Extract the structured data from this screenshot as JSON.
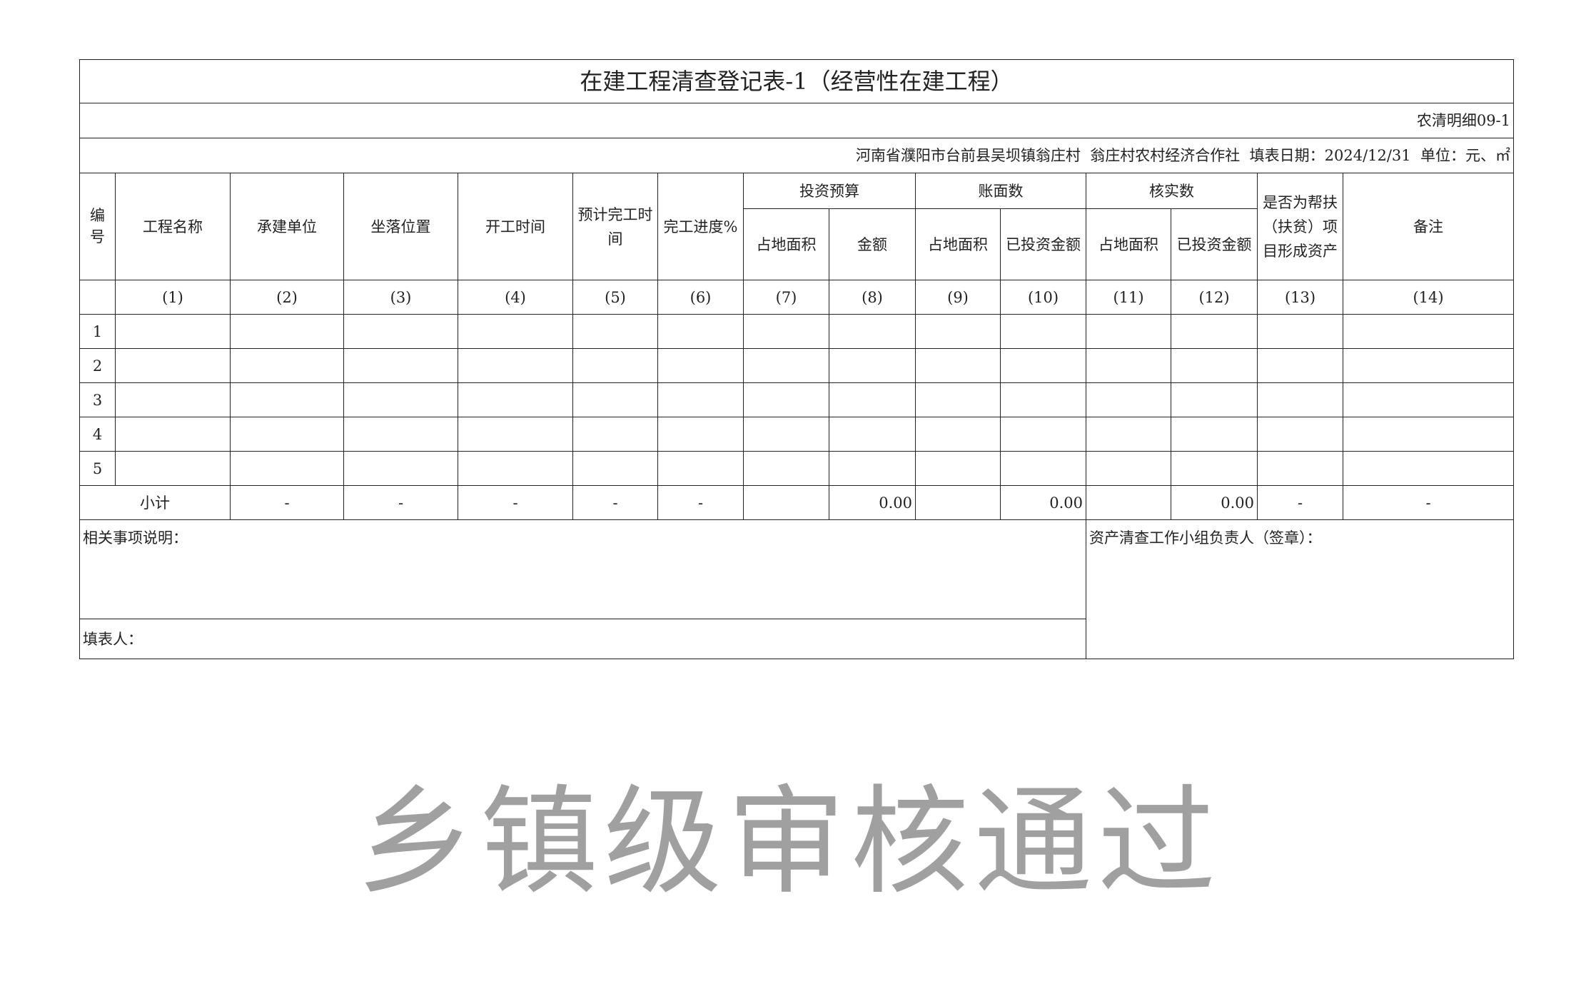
{
  "title": "在建工程清查登记表-1（经营性在建工程）",
  "form_code": "农清明细09-1",
  "info_line": "河南省濮阳市台前县吴坝镇翁庄村  翁庄村农村经济合作社  填表日期：2024/12/31  单位：元、㎡",
  "headers": {
    "id": "编号",
    "name": "工程名称",
    "contractor": "承建单位",
    "location": "坐落位置",
    "start": "开工时间",
    "expected_end": "预计完工时间",
    "progress": "完工进度%",
    "budget": "投资预算",
    "book": "账面数",
    "verified": "核实数",
    "poverty": "是否为帮扶（扶贫）项目形成资产",
    "remarks": "备注",
    "area": "占地面积",
    "amount": "金额",
    "invested": "已投资金额"
  },
  "col_numbers": [
    "(1)",
    "(2)",
    "(3)",
    "(4)",
    "(5)",
    "(6)",
    "(7)",
    "(8)",
    "(9)",
    "(10)",
    "(11)",
    "(12)",
    "(13)",
    "(14)"
  ],
  "rows": [
    "1",
    "2",
    "3",
    "4",
    "5"
  ],
  "subtotal": {
    "label": "小计",
    "values": [
      "-",
      "-",
      "-",
      "-",
      "-",
      "",
      "0.00",
      "",
      "0.00",
      "",
      "0.00",
      "-",
      "-"
    ]
  },
  "notes_label": "相关事项说明：",
  "preparer_label": "填表人：",
  "signature_label": "资产清查工作小组负责人（签章）：",
  "watermark": "乡镇级审核通过"
}
